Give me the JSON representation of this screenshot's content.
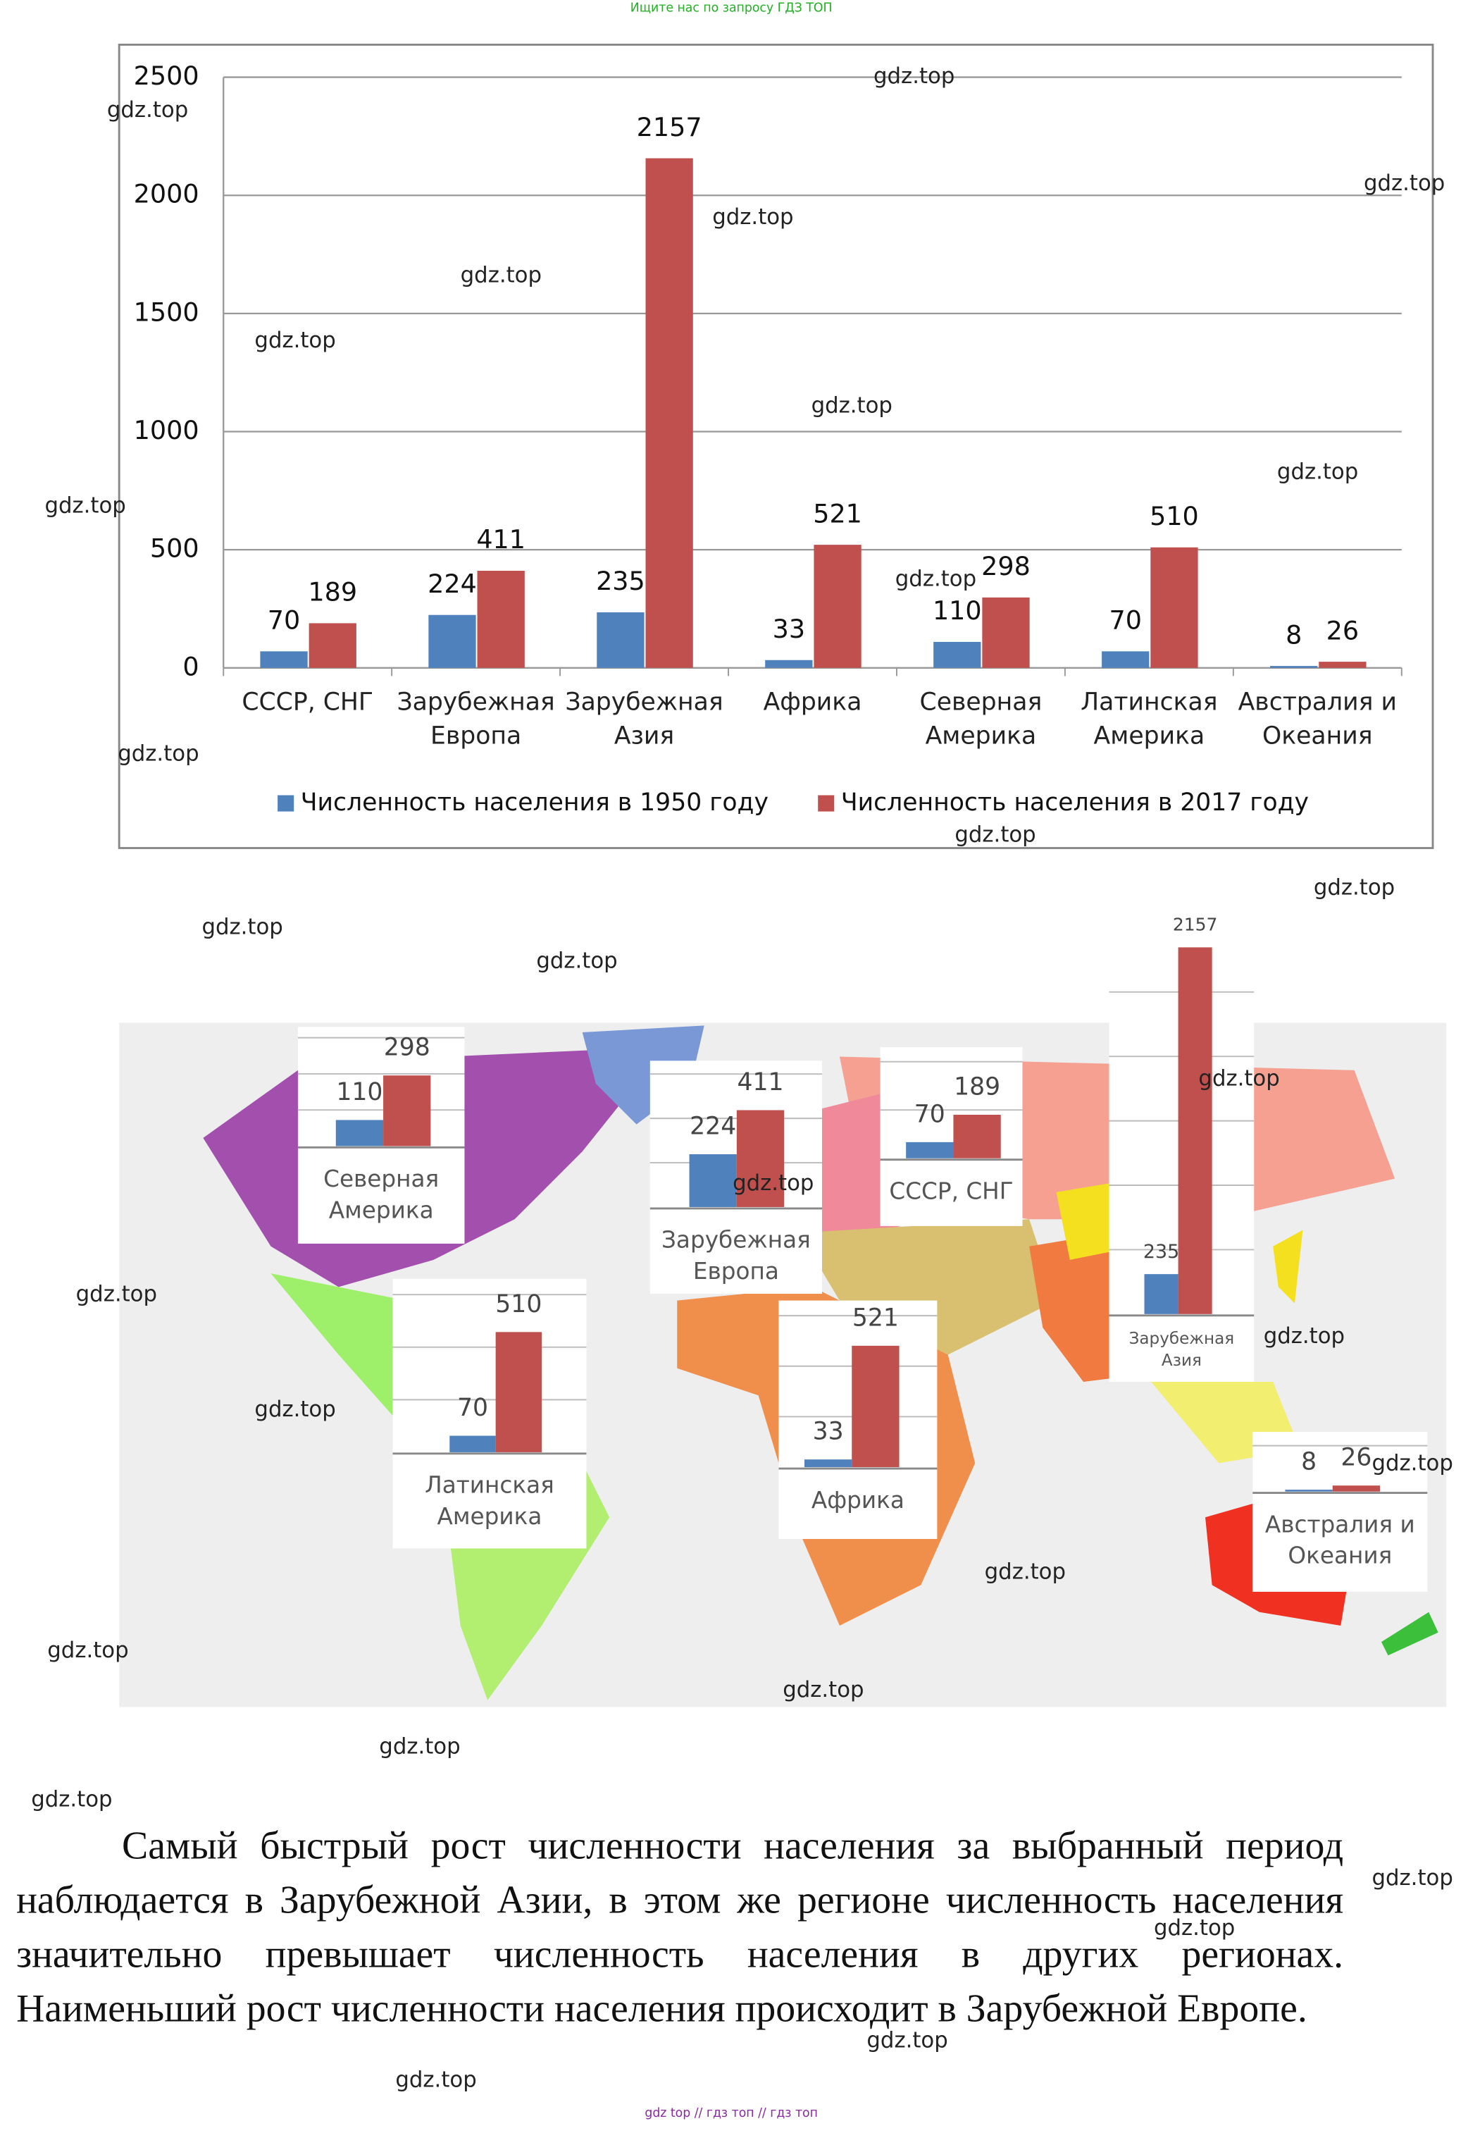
{
  "header": {
    "text": "Ищите нас по запросу ГДЗ ТОП"
  },
  "chart_data": {
    "type": "bar",
    "categories": [
      "СССР, СНГ",
      "Зарубежная Европа",
      "Зарубежная Азия",
      "Африка",
      "Северная Америка",
      "Латинская Америка",
      "Австралия и Океания"
    ],
    "series": [
      {
        "name": "Численность населения в 1950 году",
        "color": "#4f81bd",
        "values": [
          70,
          224,
          235,
          33,
          110,
          70,
          8
        ]
      },
      {
        "name": "Численность населения в 2017 году",
        "color": "#c0504d",
        "values": [
          189,
          411,
          2157,
          521,
          298,
          510,
          26
        ]
      }
    ],
    "ylim": [
      0,
      2500
    ],
    "yticks": [
      0,
      500,
      1000,
      1500,
      2000,
      2500
    ],
    "grid": true,
    "legend": "bottom"
  },
  "map_insets": [
    {
      "label": "Северная Америка",
      "values": [
        110,
        298
      ]
    },
    {
      "label": "Зарубежная Европа",
      "values": [
        224,
        411
      ]
    },
    {
      "label": "СССР, СНГ",
      "values": [
        70,
        189
      ]
    },
    {
      "label": "Зарубежная Азия",
      "values": [
        235,
        2157
      ]
    },
    {
      "label": "Латинская Америка",
      "values": [
        70,
        510
      ]
    },
    {
      "label": "Африка",
      "values": [
        33,
        521
      ]
    },
    {
      "label": "Австралия и Океания",
      "values": [
        8,
        26
      ]
    }
  ],
  "paragraph": "Самый быстрый рост численности населения за выбранный период наблюдается в Зарубежной Азии, в этом же регионе численность населения значительно превышает численность населения в других регионах. Наименьший рост численности населения происходит в Зарубежной Европе.",
  "watermarks": [
    "gdz.top",
    "gdz.top",
    "gdz.top",
    "gdz.top",
    "gdz.top",
    "gdz.top",
    "gdz.top",
    "gdz.top",
    "gdz.top",
    "gdz.top",
    "gdz.top",
    "gdz.top",
    "gdz.top",
    "gdz.top",
    "gdz.top",
    "gdz.top",
    "gdz.top",
    "gdz.top",
    "gdz.top",
    "gdz.top",
    "gdz.top",
    "gdz.top",
    "gdz.top",
    "gdz.top",
    "gdz.top",
    "gdz.top",
    "gdz.top",
    "gdz.top",
    "gdz.top",
    "gdz.top"
  ],
  "footer": {
    "text": "gdz top // гдз топ // гдз топ"
  }
}
